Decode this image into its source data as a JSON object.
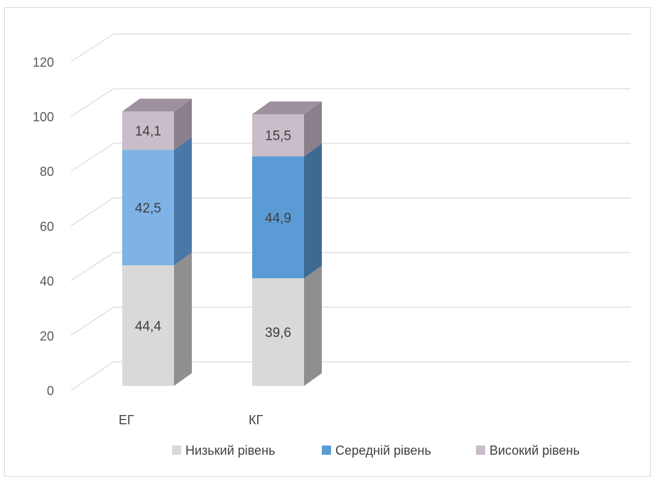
{
  "chart_data": {
    "type": "bar",
    "stacked": true,
    "three_d": true,
    "categories": [
      "ЕГ",
      "КГ"
    ],
    "series": [
      {
        "name": "Низький рівень",
        "values": [
          44.4,
          39.6
        ],
        "value_labels": [
          "44,4",
          "39,6"
        ]
      },
      {
        "name": "Середній рівень",
        "values": [
          42.5,
          44.9
        ],
        "value_labels": [
          "42,5",
          "44,9"
        ]
      },
      {
        "name": "Високий рівень",
        "values": [
          14.1,
          15.5
        ],
        "value_labels": [
          "14,1",
          "15,5"
        ]
      }
    ],
    "colors": {
      "Низький рівень": [
        "#d9d9d9",
        "#8f8f8f",
        "#bfbfbf"
      ],
      "Середній рівень": [
        "#7fb2e5",
        "#4b77a6",
        "#5f92c8"
      ],
      "Високий рівень": [
        "#c9bdc9",
        "#8b7f8b",
        "#9e919e"
      ]
    },
    "category_series_colors": {
      "КГ": {
        "Середній рівень": [
          "#5b9bd5",
          "#3e6a92",
          "#4b7fb0"
        ]
      }
    },
    "yticks": [
      "0",
      "20",
      "40",
      "60",
      "80",
      "100",
      "120"
    ],
    "ylim": [
      0,
      120
    ],
    "grid": true,
    "legend_position": "bottom",
    "title": "",
    "xlabel": "",
    "ylabel": ""
  }
}
